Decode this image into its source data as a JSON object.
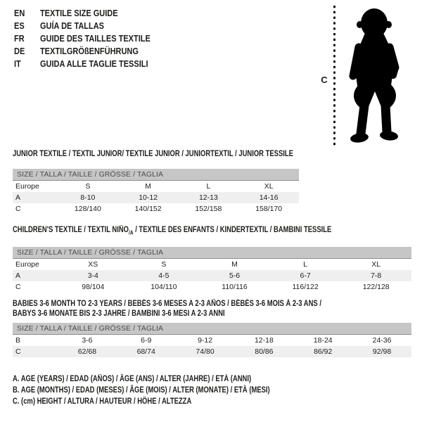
{
  "colors": {
    "text": "#1d1d1b",
    "bar_bg": "#c6c6c6",
    "bar_border": "#8d8d8d",
    "bar_text": "#4c4c4c",
    "row_shaded": "#efefef"
  },
  "header": {
    "languages": [
      {
        "code": "EN",
        "title": "TEXTILE SIZE GUIDE"
      },
      {
        "code": "ES",
        "title": "GUÍA DE TALLAS"
      },
      {
        "code": "FR",
        "title": "GUIDE DES TAILLES TEXTILE"
      },
      {
        "code": "DE",
        "title": "TEXTILGRÖßENFÜHRUNG"
      },
      {
        "code": "IT",
        "title": "GUIDA ALLE TAGLIE TESSILI"
      }
    ]
  },
  "figure": {
    "icon": "baby-silhouette",
    "height_label": "C"
  },
  "tables": [
    {
      "id": "junior",
      "title_lines": [
        [
          {
            "text": "JUNIOR TEXTILE / TEXTIL JUNIOR/ TEXTILE JUNIOR / JUNIORTEXTIL / JUNIOR TESSILE"
          }
        ]
      ],
      "size_header": "SIZE / TALLA / TAILLE / GRÖSSE / TAGLIA",
      "rows": [
        {
          "label": "Europe",
          "values": [
            "S",
            "M",
            "L",
            "XL"
          ],
          "shaded": false
        },
        {
          "label": "A",
          "values": [
            "8-10",
            "10-12",
            "12-13",
            "14-16"
          ],
          "shaded": true
        },
        {
          "label": "C",
          "values": [
            "128/140",
            "140/152",
            "152/158",
            "158/170"
          ],
          "shaded": false
        }
      ]
    },
    {
      "id": "children",
      "title_lines": [
        [
          {
            "text": "CHILDREN'S TEXTILE / TEXTIL NIÑO"
          },
          {
            "text": "/A",
            "sub": true
          },
          {
            "text": " / TEXTILE DES ENFANTS / KINDERTEXTIL / BAMBINI TESSILE"
          }
        ]
      ],
      "size_header": "SIZE / TALLA / TAILLE / GRÖSSE / TAGLIA",
      "rows": [
        {
          "label": "Europe",
          "values": [
            "XS",
            "S",
            "M",
            "L",
            "XL"
          ],
          "shaded": false
        },
        {
          "label": "A",
          "values": [
            "3-4",
            "4-5",
            "5-6",
            "6-7",
            "7-8"
          ],
          "shaded": true
        },
        {
          "label": "C",
          "values": [
            "98/104",
            "104/110",
            "110/116",
            "116/122",
            "122/128"
          ],
          "shaded": false
        }
      ]
    },
    {
      "id": "babies",
      "title_lines": [
        [
          {
            "text": "BABIES 3-6 MONTH TO 2-3 YEARS / BEBÉS 3-6 MESES A 2-3 AÑOS / BÉBÉS 3-6 MOIS À 2-3 ANS /"
          }
        ],
        [
          {
            "text": "BABYS 3-6 MONATE BIS 2-3 JAHRE / BAMBINI 3-6 MESI A 2-3 ANNI"
          }
        ]
      ],
      "size_header": "SIZE / TALLA / TAILLE / GRÖSSE / TAGLIA",
      "rows": [
        {
          "label": "B",
          "values": [
            "3-6",
            "6-9",
            "9-12",
            "12-18",
            "18-24",
            "24-36"
          ],
          "shaded": false
        },
        {
          "label": "C",
          "values": [
            "62/68",
            "68/74",
            "74/80",
            "80/86",
            "86/92",
            "92/98"
          ],
          "shaded": true
        }
      ]
    }
  ],
  "notes": [
    "A. AGE (YEARS) / EDAD (AÑOS) / ÂGE (ANS) / ALTER (JAHRE) / ETÀ (ANNI)",
    "B. AGE (MONTHS) / EDAD (MESES) / ÂGE (MOIS) / ALTER (MONATE) / ETÀ (MESI)",
    "C. (cm) HEIGHT / ALTURA / HAUTEUR / HÖHE / ALTEZZA"
  ]
}
